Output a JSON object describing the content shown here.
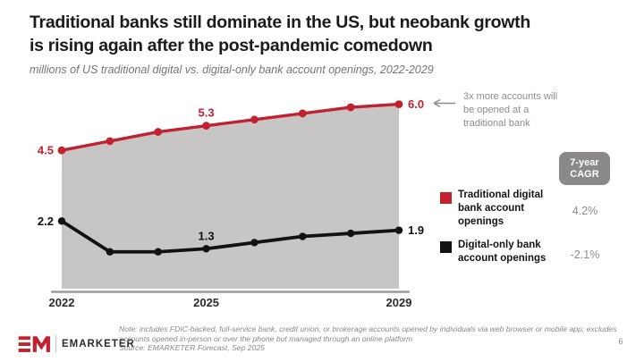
{
  "header": {
    "title_lines": [
      "Traditional banks still dominate in the US, but neobank growth",
      "is rising again after the post-pandemic comedown"
    ],
    "subtitle": "millions of US traditional digital vs. digital-only bank account openings, 2022-2029"
  },
  "chart_data": {
    "type": "line",
    "title": "Traditional banks still dominate in the US, but neobank growth is rising again after the post-pandemic comedown",
    "subtitle": "millions of US traditional digital vs. digital-only bank account openings, 2022-2029",
    "x": [
      2022,
      2023,
      2024,
      2025,
      2026,
      2027,
      2028,
      2029
    ],
    "x_ticks": [
      {
        "label": "2022",
        "index": 0
      },
      {
        "label": "2025",
        "index": 3
      },
      {
        "label": "2029",
        "index": 7
      }
    ],
    "series": [
      {
        "name": "Traditional digital bank account openings",
        "color": "#c22130",
        "values": [
          4.5,
          4.8,
          5.1,
          5.3,
          5.5,
          5.7,
          5.9,
          6.0
        ],
        "seven_year_cagr": "4.2%",
        "fill_under": true
      },
      {
        "name": "Digital-only bank account openings",
        "color": "#121212",
        "values": [
          2.2,
          1.2,
          1.2,
          1.3,
          1.5,
          1.7,
          1.8,
          1.9
        ],
        "seven_year_cagr": "-2.1%",
        "fill_under": false
      }
    ],
    "point_labels": [
      {
        "series": 0,
        "index": 0,
        "text": "4.5",
        "placement": "left"
      },
      {
        "series": 0,
        "index": 3,
        "text": "5.3",
        "placement": "above"
      },
      {
        "series": 0,
        "index": 7,
        "text": "6.0",
        "placement": "right"
      },
      {
        "series": 1,
        "index": 0,
        "text": "2.2",
        "placement": "left"
      },
      {
        "series": 1,
        "index": 3,
        "text": "1.3",
        "placement": "above"
      },
      {
        "series": 1,
        "index": 7,
        "text": "1.9",
        "placement": "right"
      }
    ],
    "ylim": [
      0,
      6.5
    ],
    "grid": false,
    "legend_position": "right",
    "area_fill_color": "#c8c6c5",
    "axis_color": "#9c9a9a",
    "tick_label_color": "#2d2b2c",
    "annotation": "3x more accounts will be opened at a traditional bank",
    "cagr_header": "7-year CAGR"
  },
  "footer": {
    "brand": "EMARKETER",
    "note_lines": [
      "Note: includes FDIC-backed, full-service bank, credit union, or brokerage accounts opened by individuals via web browser or mobile app; excludes",
      "accounts opened in-person or over the phone but managed through an online platform",
      "Source: EMARKETER Forecast, Sep 2025"
    ],
    "page_number": "6"
  }
}
